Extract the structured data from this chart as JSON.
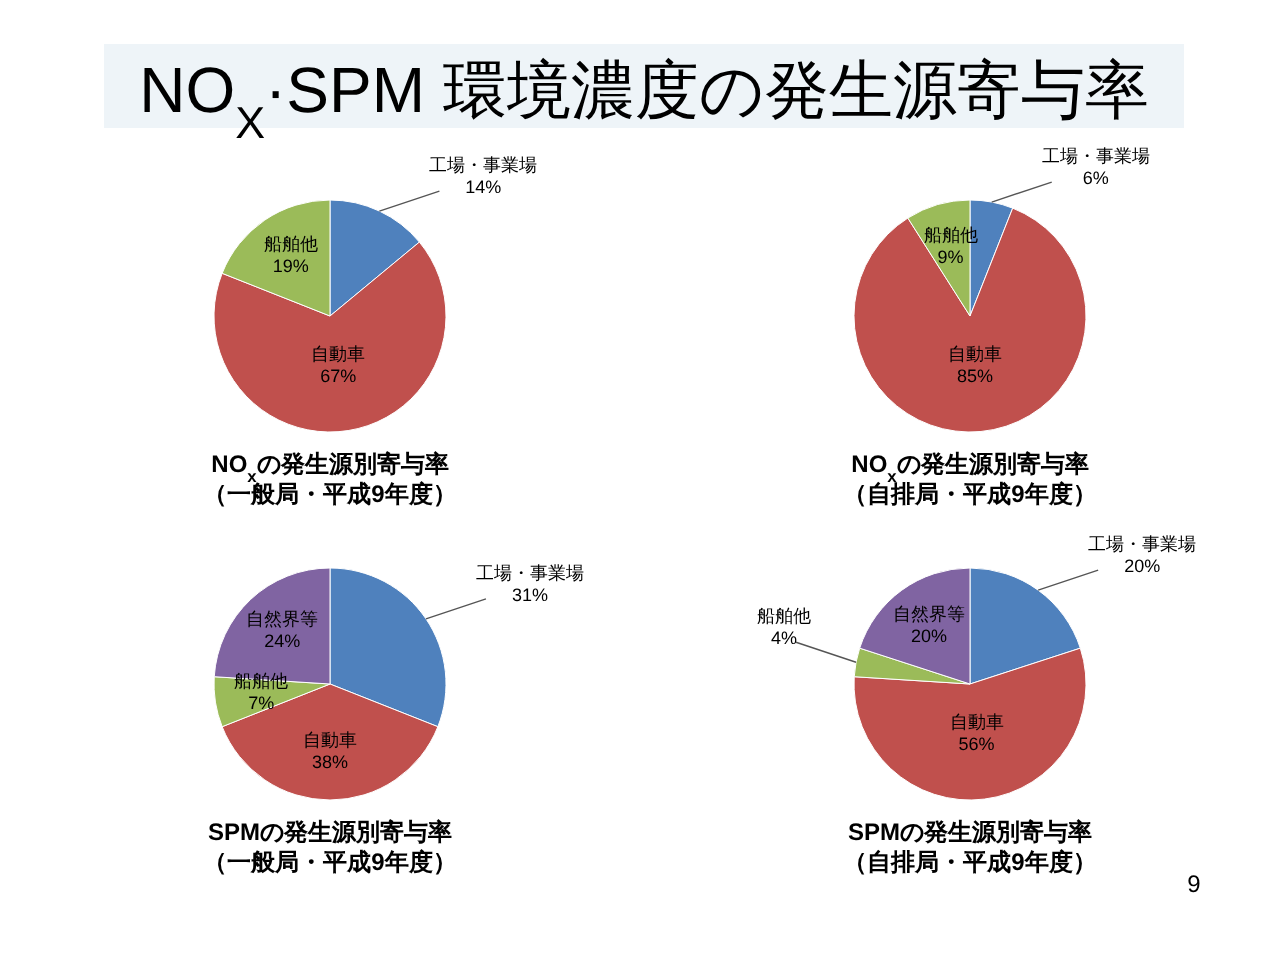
{
  "chart_data": [
    {
      "type": "other",
      "title": "NO$_{X}$·SPM 環境濃度の発生源寄与率",
      "annotations": [
        "9"
      ]
    },
    {
      "type": "pie",
      "title": "NO$_{x}$の発生源別寄与率",
      "subtitle": "（一般局・平成9年度）",
      "categories": [
        "工場・事業場",
        "自動車",
        "船舶他"
      ],
      "values": [
        14,
        67,
        19
      ],
      "colors": [
        "#4f81bd",
        "#c0504d",
        "#9bbb59"
      ],
      "value_labels": [
        "14%",
        "67%",
        "19%"
      ]
    },
    {
      "type": "pie",
      "title": "NO$_{x}$の発生源別寄与率",
      "subtitle": "（自排局・平成9年度）",
      "categories": [
        "工場・事業場",
        "自動車",
        "船舶他"
      ],
      "values": [
        6,
        85,
        9
      ],
      "colors": [
        "#4f81bd",
        "#c0504d",
        "#9bbb59"
      ],
      "value_labels": [
        "6%",
        "85%",
        "9%"
      ]
    },
    {
      "type": "pie",
      "title": "SPMの発生源別寄与率",
      "subtitle": "（一般局・平成9年度）",
      "categories": [
        "工場・事業場",
        "自動車",
        "船舶他",
        "自然界等"
      ],
      "values": [
        31,
        38,
        7,
        24
      ],
      "colors": [
        "#4f81bd",
        "#c0504d",
        "#9bbb59",
        "#8064a2"
      ],
      "value_labels": [
        "31%",
        "38%",
        "7%",
        "24%"
      ]
    },
    {
      "type": "pie",
      "title": "SPMの発生源別寄与率",
      "subtitle": "（自排局・平成9年度）",
      "categories": [
        "工場・事業場",
        "自動車",
        "船舶他",
        "自然界等"
      ],
      "values": [
        20,
        56,
        4,
        20
      ],
      "colors": [
        "#4f81bd",
        "#c0504d",
        "#9bbb59",
        "#8064a2"
      ],
      "value_labels": [
        "20%",
        "56%",
        "4%",
        "20%"
      ]
    }
  ]
}
